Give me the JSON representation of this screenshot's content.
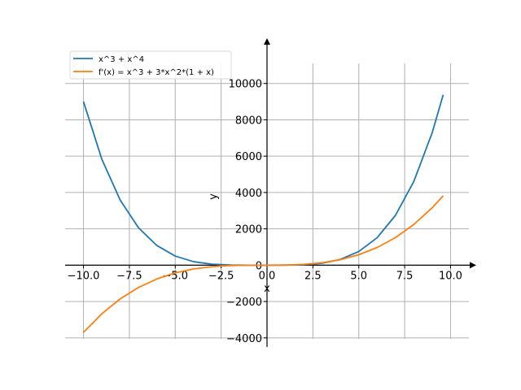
{
  "chart_data": {
    "type": "line",
    "xlabel": "x",
    "ylabel": "y",
    "xlim": [
      -11,
      11
    ],
    "ylim": [
      -4500,
      12000
    ],
    "x_ticks": [
      -10.0,
      -7.5,
      -5.0,
      -2.5,
      0.0,
      2.5,
      5.0,
      7.5,
      10.0
    ],
    "x_tick_labels": [
      "−10.0",
      "−7.5",
      "−5.0",
      "−2.5",
      "0.0",
      "2.5",
      "5.0",
      "7.5",
      "10.0"
    ],
    "y_ticks": [
      -4000,
      -2000,
      0,
      2000,
      4000,
      6000,
      8000,
      10000
    ],
    "y_tick_labels": [
      "−4000",
      "−2000",
      "0",
      "2000",
      "4000",
      "6000",
      "8000",
      "10000"
    ],
    "grid": true,
    "legend_position": "top-left",
    "series": [
      {
        "name": "x^3 + x^4",
        "color": "#1f77b4",
        "x": [
          -10,
          -9,
          -8,
          -7,
          -6,
          -5,
          -4,
          -3,
          -2,
          -1,
          0,
          1,
          2,
          3,
          4,
          5,
          6,
          7,
          8,
          9,
          9.6
        ],
        "y": [
          9000,
          5832,
          3584,
          2058,
          1080,
          500,
          192,
          54,
          8,
          0,
          0,
          2,
          24,
          108,
          320,
          750,
          1512,
          2744,
          4608,
          7290,
          9379
        ]
      },
      {
        "name": "f'(x) = x^3 + 3*x^2*(1 + x)",
        "color": "#ff7f0e",
        "x": [
          -10,
          -9,
          -8,
          -7,
          -6,
          -5,
          -4,
          -3,
          -2,
          -1,
          0,
          1,
          2,
          3,
          4,
          5,
          6,
          7,
          8,
          9,
          9.6
        ],
        "y": [
          -3700,
          -2673,
          -1856,
          -1225,
          -756,
          -425,
          -208,
          -81,
          -20,
          -1,
          0,
          7,
          44,
          135,
          304,
          575,
          972,
          1519,
          2240,
          3159,
          3816
        ]
      }
    ]
  }
}
